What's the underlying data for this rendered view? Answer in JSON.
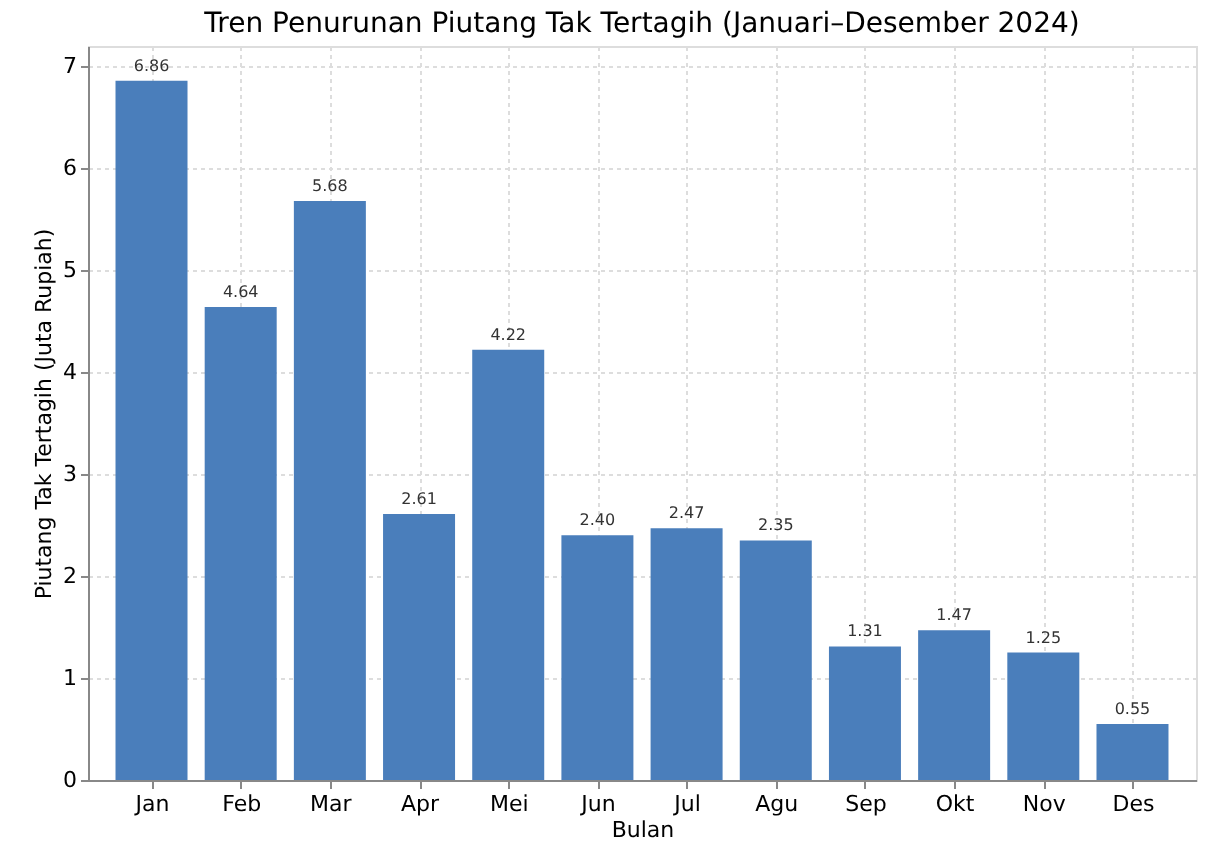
{
  "chart_data": {
    "type": "bar",
    "title": "Tren Penurunan Piutang Tak Tertagih (Januari–Desember 2024)",
    "xlabel": "Bulan",
    "ylabel": "Piutang Tak Tertagih (Juta Rupiah)",
    "categories": [
      "Jan",
      "Feb",
      "Mar",
      "Apr",
      "Mei",
      "Jun",
      "Jul",
      "Agu",
      "Sep",
      "Okt",
      "Nov",
      "Des"
    ],
    "values": [
      6.86,
      4.64,
      5.68,
      2.61,
      4.22,
      2.4,
      2.47,
      2.35,
      1.31,
      1.47,
      1.25,
      0.55
    ],
    "value_labels": [
      "6.86",
      "4.64",
      "5.68",
      "2.61",
      "4.22",
      "2.40",
      "2.47",
      "2.35",
      "1.31",
      "1.47",
      "1.25",
      "0.55"
    ],
    "color": "#4a7ebb",
    "ylim": [
      0,
      7.2
    ],
    "yticks": [
      0,
      1,
      2,
      3,
      4,
      5,
      6,
      7
    ],
    "grid": true
  }
}
